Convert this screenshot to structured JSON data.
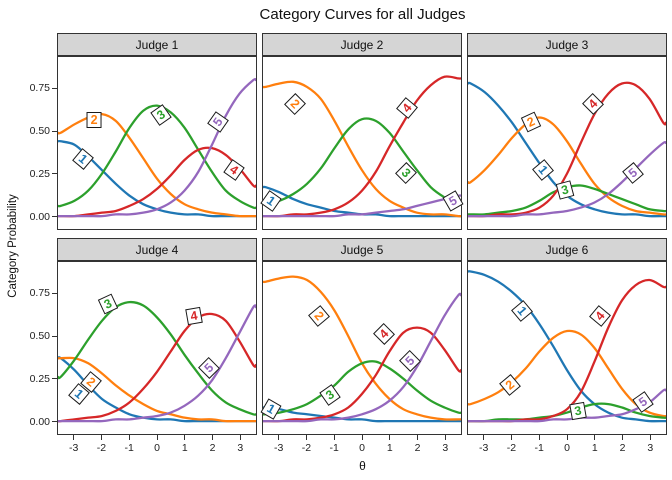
{
  "axes": {
    "x_ticks": [
      -3,
      -2,
      -1,
      0,
      1,
      2,
      3
    ],
    "y_ticks": [
      {
        "label": "0.75",
        "value": 0.75
      },
      {
        "label": "0.50",
        "value": 0.5
      },
      {
        "label": "0.25",
        "value": 0.25
      },
      {
        "label": "0.00",
        "value": 0
      }
    ]
  },
  "styles": {
    "strip_background": "#d5d5d5",
    "panel_border": "#333333",
    "background": "#ffffff"
  },
  "chart_data": {
    "type": "line",
    "title": "Category Curves for all Judges",
    "xlabel": "θ",
    "ylabel": "Category Probability",
    "xlim": [
      -3.6,
      3.6
    ],
    "ylim": [
      0,
      0.94
    ],
    "grid": false,
    "legend": "inline-boxed-labels",
    "palette": {
      "1": "#1f77b4",
      "2": "#ff7f0e",
      "3": "#2ca02c",
      "4": "#d62728",
      "5": "#9467bd"
    },
    "x": [
      -3.5,
      -3,
      -2.5,
      -2,
      -1.5,
      -1,
      -0.5,
      0,
      0.5,
      1,
      1.5,
      2,
      2.5,
      3,
      3.5
    ],
    "facets": [
      {
        "name": "Judge 1",
        "series": [
          {
            "category": "1",
            "values": [
              0.44,
              0.42,
              0.35,
              0.27,
              0.19,
              0.12,
              0.07,
              0.04,
              0.02,
              0.01,
              0.01,
              0,
              0,
              0,
              0
            ],
            "label": {
              "x": -2.7,
              "y": 0.34,
              "rot": 40
            }
          },
          {
            "category": "2",
            "values": [
              0.49,
              0.54,
              0.58,
              0.6,
              0.56,
              0.46,
              0.34,
              0.22,
              0.13,
              0.07,
              0.04,
              0.02,
              0.01,
              0,
              0
            ],
            "label": {
              "x": -2.3,
              "y": 0.57,
              "rot": 0
            }
          },
          {
            "category": "3",
            "values": [
              0.06,
              0.09,
              0.15,
              0.25,
              0.38,
              0.52,
              0.62,
              0.65,
              0.61,
              0.52,
              0.39,
              0.26,
              0.15,
              0.09,
              0.05
            ],
            "label": {
              "x": 0.1,
              "y": 0.6,
              "rot": -35
            }
          },
          {
            "category": "4",
            "values": [
              0,
              0,
              0.01,
              0.02,
              0.03,
              0.06,
              0.1,
              0.16,
              0.24,
              0.33,
              0.39,
              0.4,
              0.36,
              0.28,
              0.18
            ],
            "label": {
              "x": 2.75,
              "y": 0.28,
              "rot": 35
            }
          },
          {
            "category": "5",
            "values": [
              0,
              0,
              0,
              0,
              0.01,
              0.01,
              0.02,
              0.04,
              0.08,
              0.15,
              0.26,
              0.42,
              0.59,
              0.72,
              0.8
            ],
            "label": {
              "x": 2.15,
              "y": 0.56,
              "rot": -55
            }
          }
        ]
      },
      {
        "name": "Judge 2",
        "series": [
          {
            "category": "1",
            "values": [
              0.17,
              0.14,
              0.1,
              0.07,
              0.05,
              0.03,
              0.02,
              0.01,
              0.01,
              0,
              0,
              0,
              0,
              0,
              0
            ],
            "label": {
              "x": -3.3,
              "y": 0.1,
              "rot": 35
            }
          },
          {
            "category": "2",
            "values": [
              0.76,
              0.78,
              0.79,
              0.76,
              0.69,
              0.56,
              0.41,
              0.27,
              0.16,
              0.09,
              0.05,
              0.02,
              0.01,
              0.01,
              0
            ],
            "label": {
              "x": -2.45,
              "y": 0.66,
              "rot": 45
            }
          },
          {
            "category": "3",
            "values": [
              0.07,
              0.09,
              0.13,
              0.19,
              0.28,
              0.4,
              0.51,
              0.57,
              0.56,
              0.49,
              0.38,
              0.27,
              0.17,
              0.11,
              0.07
            ],
            "label": {
              "x": 1.55,
              "y": 0.26,
              "rot": 45
            }
          },
          {
            "category": "4",
            "values": [
              0,
              0,
              0.01,
              0.01,
              0.02,
              0.04,
              0.08,
              0.15,
              0.26,
              0.41,
              0.55,
              0.68,
              0.77,
              0.82,
              0.81
            ],
            "label": {
              "x": 1.6,
              "y": 0.64,
              "rot": -50
            }
          },
          {
            "category": "5",
            "values": [
              0,
              0,
              0,
              0,
              0,
              0,
              0.01,
              0.01,
              0.02,
              0.03,
              0.04,
              0.06,
              0.08,
              0.1,
              0.12
            ],
            "label": {
              "x": 3.25,
              "y": 0.1,
              "rot": -30
            }
          }
        ]
      },
      {
        "name": "Judge 3",
        "series": [
          {
            "category": "1",
            "values": [
              0.78,
              0.73,
              0.65,
              0.55,
              0.43,
              0.31,
              0.2,
              0.12,
              0.07,
              0.04,
              0.02,
              0.01,
              0.01,
              0,
              0
            ],
            "label": {
              "x": -0.9,
              "y": 0.28,
              "rot": 50
            }
          },
          {
            "category": "2",
            "values": [
              0.2,
              0.27,
              0.36,
              0.46,
              0.54,
              0.58,
              0.54,
              0.44,
              0.31,
              0.19,
              0.11,
              0.06,
              0.03,
              0.02,
              0.01
            ],
            "label": {
              "x": -1.35,
              "y": 0.56,
              "rot": -25
            }
          },
          {
            "category": "3",
            "values": [
              0.01,
              0.01,
              0.02,
              0.03,
              0.05,
              0.09,
              0.14,
              0.17,
              0.18,
              0.16,
              0.13,
              0.1,
              0.07,
              0.04,
              0.03
            ],
            "label": {
              "x": -0.1,
              "y": 0.16,
              "rot": -15
            }
          },
          {
            "category": "4",
            "values": [
              0,
              0,
              0.01,
              0.01,
              0.02,
              0.05,
              0.12,
              0.25,
              0.43,
              0.6,
              0.72,
              0.78,
              0.77,
              0.69,
              0.55
            ],
            "label": {
              "x": 0.9,
              "y": 0.66,
              "rot": -45
            }
          },
          {
            "category": "5",
            "values": [
              0,
              0,
              0,
              0,
              0.01,
              0.01,
              0.02,
              0.03,
              0.05,
              0.08,
              0.13,
              0.2,
              0.28,
              0.36,
              0.43
            ],
            "label": {
              "x": 2.35,
              "y": 0.26,
              "rot": -40
            }
          }
        ]
      },
      {
        "name": "Judge 4",
        "series": [
          {
            "category": "1",
            "values": [
              0.37,
              0.3,
              0.21,
              0.13,
              0.08,
              0.04,
              0.02,
              0.01,
              0.01,
              0,
              0,
              0,
              0,
              0,
              0
            ],
            "label": {
              "x": -2.85,
              "y": 0.17,
              "rot": 40
            }
          },
          {
            "category": "2",
            "values": [
              0.37,
              0.37,
              0.34,
              0.28,
              0.21,
              0.15,
              0.1,
              0.06,
              0.04,
              0.02,
              0.01,
              0.01,
              0,
              0,
              0
            ],
            "label": {
              "x": -2.4,
              "y": 0.24,
              "rot": 40
            }
          },
          {
            "category": "3",
            "values": [
              0.26,
              0.36,
              0.48,
              0.59,
              0.67,
              0.7,
              0.68,
              0.61,
              0.51,
              0.39,
              0.28,
              0.18,
              0.11,
              0.07,
              0.04
            ],
            "label": {
              "x": -1.8,
              "y": 0.69,
              "rot": -25
            }
          },
          {
            "category": "4",
            "values": [
              0,
              0.01,
              0.02,
              0.03,
              0.06,
              0.11,
              0.19,
              0.29,
              0.41,
              0.53,
              0.61,
              0.63,
              0.59,
              0.47,
              0.33
            ],
            "label": {
              "x": 1.3,
              "y": 0.62,
              "rot": -10
            }
          },
          {
            "category": "5",
            "values": [
              0,
              0,
              0,
              0,
              0.01,
              0.01,
              0.02,
              0.03,
              0.05,
              0.09,
              0.15,
              0.24,
              0.37,
              0.52,
              0.67
            ],
            "label": {
              "x": 1.85,
              "y": 0.32,
              "rot": -45
            }
          }
        ]
      },
      {
        "name": "Judge 5",
        "series": [
          {
            "category": "1",
            "values": [
              0.08,
              0.07,
              0.05,
              0.04,
              0.03,
              0.02,
              0.01,
              0.01,
              0,
              0,
              0,
              0,
              0,
              0,
              0
            ],
            "label": {
              "x": -3.3,
              "y": 0.08,
              "rot": 30
            }
          },
          {
            "category": "2",
            "values": [
              0.82,
              0.84,
              0.85,
              0.83,
              0.76,
              0.65,
              0.5,
              0.34,
              0.22,
              0.13,
              0.07,
              0.04,
              0.02,
              0.01,
              0.01
            ],
            "label": {
              "x": -1.6,
              "y": 0.62,
              "rot": 50
            }
          },
          {
            "category": "3",
            "values": [
              0.04,
              0.05,
              0.07,
              0.1,
              0.15,
              0.21,
              0.29,
              0.34,
              0.35,
              0.31,
              0.25,
              0.18,
              0.12,
              0.08,
              0.05
            ],
            "label": {
              "x": -1.2,
              "y": 0.16,
              "rot": -35
            }
          },
          {
            "category": "4",
            "values": [
              0,
              0,
              0.01,
              0.01,
              0.02,
              0.04,
              0.08,
              0.16,
              0.27,
              0.41,
              0.52,
              0.55,
              0.52,
              0.42,
              0.3
            ],
            "label": {
              "x": 0.75,
              "y": 0.52,
              "rot": -45
            }
          },
          {
            "category": "5",
            "values": [
              0,
              0,
              0,
              0,
              0.01,
              0.01,
              0.02,
              0.04,
              0.07,
              0.12,
              0.2,
              0.32,
              0.47,
              0.62,
              0.74
            ],
            "label": {
              "x": 1.7,
              "y": 0.36,
              "rot": -45
            }
          }
        ]
      },
      {
        "name": "Judge 6",
        "series": [
          {
            "category": "1",
            "values": [
              0.88,
              0.86,
              0.82,
              0.76,
              0.68,
              0.57,
              0.44,
              0.3,
              0.18,
              0.1,
              0.05,
              0.02,
              0.01,
              0,
              0
            ],
            "label": {
              "x": -1.65,
              "y": 0.65,
              "rot": 50
            }
          },
          {
            "category": "2",
            "values": [
              0.1,
              0.13,
              0.17,
              0.23,
              0.31,
              0.41,
              0.49,
              0.53,
              0.51,
              0.43,
              0.31,
              0.19,
              0.1,
              0.05,
              0.03
            ],
            "label": {
              "x": -2.1,
              "y": 0.22,
              "rot": -40
            }
          },
          {
            "category": "3",
            "values": [
              0,
              0,
              0.01,
              0.01,
              0.01,
              0.02,
              0.03,
              0.05,
              0.08,
              0.1,
              0.1,
              0.08,
              0.05,
              0.03,
              0.02
            ],
            "label": {
              "x": 0.35,
              "y": 0.07,
              "rot": -10
            }
          },
          {
            "category": "4",
            "values": [
              0,
              0,
              0,
              0,
              0.01,
              0.01,
              0.03,
              0.07,
              0.17,
              0.35,
              0.55,
              0.71,
              0.8,
              0.83,
              0.79
            ],
            "label": {
              "x": 1.15,
              "y": 0.62,
              "rot": -50
            }
          },
          {
            "category": "5",
            "values": [
              0,
              0,
              0,
              0,
              0,
              0,
              0.01,
              0.01,
              0.02,
              0.02,
              0.03,
              0.04,
              0.07,
              0.11,
              0.18
            ],
            "label": {
              "x": 2.7,
              "y": 0.12,
              "rot": -35
            }
          }
        ]
      }
    ]
  }
}
